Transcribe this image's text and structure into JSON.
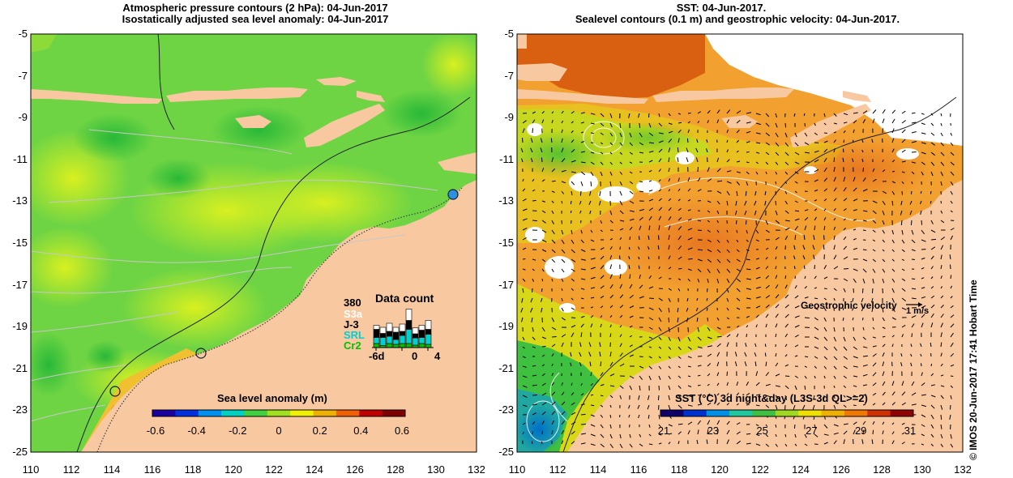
{
  "left_panel": {
    "title_line1": "Atmospheric pressure contours (2 hPa): 04-Jun-2017",
    "title_line2": "Isostatically adjusted sea level anomaly: 04-Jun-2017",
    "colorbar_title": "Sea level anomaly (m)",
    "colorbar_ticks": [
      "-0.6",
      "-0.4",
      "-0.2",
      "0",
      "0.2",
      "0.4",
      "0.6"
    ],
    "colorbar_colors": [
      "#1a00a0",
      "#0030e0",
      "#0090f0",
      "#00d0c0",
      "#40d040",
      "#a0e020",
      "#f0f000",
      "#f0b000",
      "#f06000",
      "#c00000",
      "#800000"
    ],
    "data_count": {
      "title": "Data count",
      "max_label": "380",
      "satellites": [
        {
          "name": "S3a",
          "color": "#ffffff"
        },
        {
          "name": "J-3",
          "color": "#000000"
        },
        {
          "name": "SRL",
          "color": "#00d0d0"
        },
        {
          "name": "Cr2",
          "color": "#00c000"
        }
      ],
      "x_labels": [
        "-6d",
        "0",
        "4"
      ],
      "bars": [
        {
          "s3a": 0.1,
          "j3": 0.2,
          "srl": 0.15,
          "cr2": 0.1
        },
        {
          "s3a": 0.15,
          "j3": 0.1,
          "srl": 0.2,
          "cr2": 0.05
        },
        {
          "s3a": 0.2,
          "j3": 0.12,
          "srl": 0.18,
          "cr2": 0.1
        },
        {
          "s3a": 0.12,
          "j3": 0.18,
          "srl": 0.12,
          "cr2": 0.08
        },
        {
          "s3a": 0.18,
          "j3": 0.1,
          "srl": 0.2,
          "cr2": 0.1
        },
        {
          "s3a": 0.28,
          "j3": 0.22,
          "srl": 0.35,
          "cr2": 0.1
        },
        {
          "s3a": 0.15,
          "j3": 0.1,
          "srl": 0.18,
          "cr2": 0.06
        },
        {
          "s3a": 0.12,
          "j3": 0.18,
          "srl": 0.15,
          "cr2": 0.1
        },
        {
          "s3a": 0.22,
          "j3": 0.12,
          "srl": 0.25,
          "cr2": 0.08
        }
      ]
    }
  },
  "right_panel": {
    "title_line1": "SST: 04-Jun-2017.",
    "title_line2": "Sealevel contours (0.1 m) and geostrophic velocity: 04-Jun-2017.",
    "colorbar_title": "SST (°C) 3d night&day (L3S-3d QL>=2)",
    "colorbar_ticks": [
      "21",
      "23",
      "25",
      "27",
      "29",
      "31"
    ],
    "colorbar_colors": [
      "#10006a",
      "#0030d0",
      "#0090e8",
      "#20c8a0",
      "#40c040",
      "#a0d820",
      "#f0e000",
      "#f0b000",
      "#f07800",
      "#d03000",
      "#900000"
    ],
    "velocity_label": "Geostrophic velocity",
    "velocity_scale": "1 m/s"
  },
  "axes": {
    "lat_labels": [
      "-5",
      "-7",
      "-9",
      "-11",
      "-13",
      "-15",
      "-17",
      "-19",
      "-21",
      "-23",
      "-25"
    ],
    "lon_labels": [
      "110",
      "112",
      "114",
      "116",
      "118",
      "120",
      "122",
      "124",
      "126",
      "128",
      "130",
      "132"
    ]
  },
  "footer": "© IMOS 20-Jun-2017 17:41 Hobart Time",
  "colors": {
    "land": "#f8c8a0",
    "ocean_green": "#6ed444",
    "ocean_yellow": "#c4ec28",
    "sst_orange": "#f2a030"
  }
}
